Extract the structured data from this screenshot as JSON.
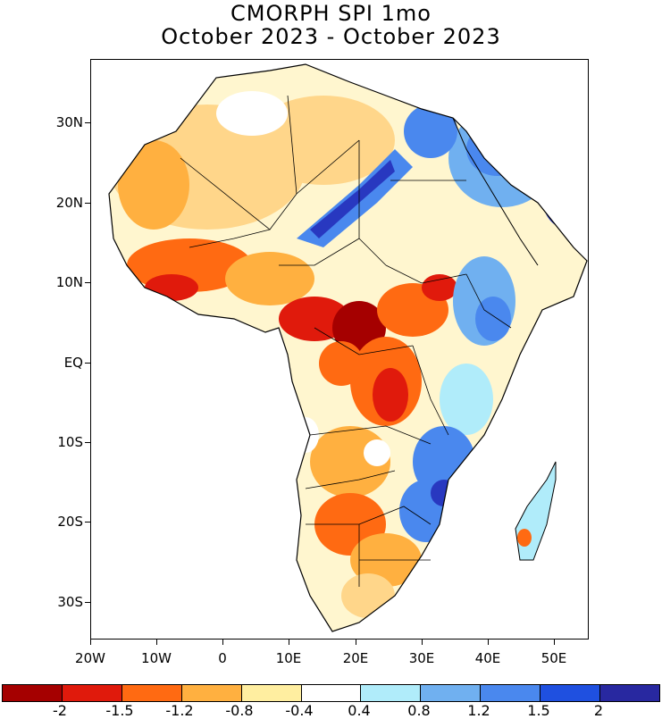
{
  "title": {
    "line1": "CMORPH SPI 1mo",
    "line2": "October 2023 - October 2023"
  },
  "map": {
    "region": "Africa",
    "lat_labels": [
      "30N",
      "20N",
      "10N",
      "EQ",
      "10S",
      "20S",
      "30S"
    ],
    "lon_labels": [
      "20W",
      "10W",
      "0",
      "10E",
      "20E",
      "30E",
      "40E",
      "50E"
    ]
  },
  "legend": {
    "colors": [
      "#a50000",
      "#e01a0c",
      "#ff6a12",
      "#ffb040",
      "#ffeea0",
      "#ffffff",
      "#b0ecfa",
      "#70b0f0",
      "#4a88ee",
      "#1f50e0",
      "#2828a0"
    ],
    "labels": [
      "-2",
      "-1.5",
      "-1.2",
      "-0.8",
      "-0.4",
      "0.4",
      "0.8",
      "1.2",
      "1.5",
      "2"
    ]
  }
}
